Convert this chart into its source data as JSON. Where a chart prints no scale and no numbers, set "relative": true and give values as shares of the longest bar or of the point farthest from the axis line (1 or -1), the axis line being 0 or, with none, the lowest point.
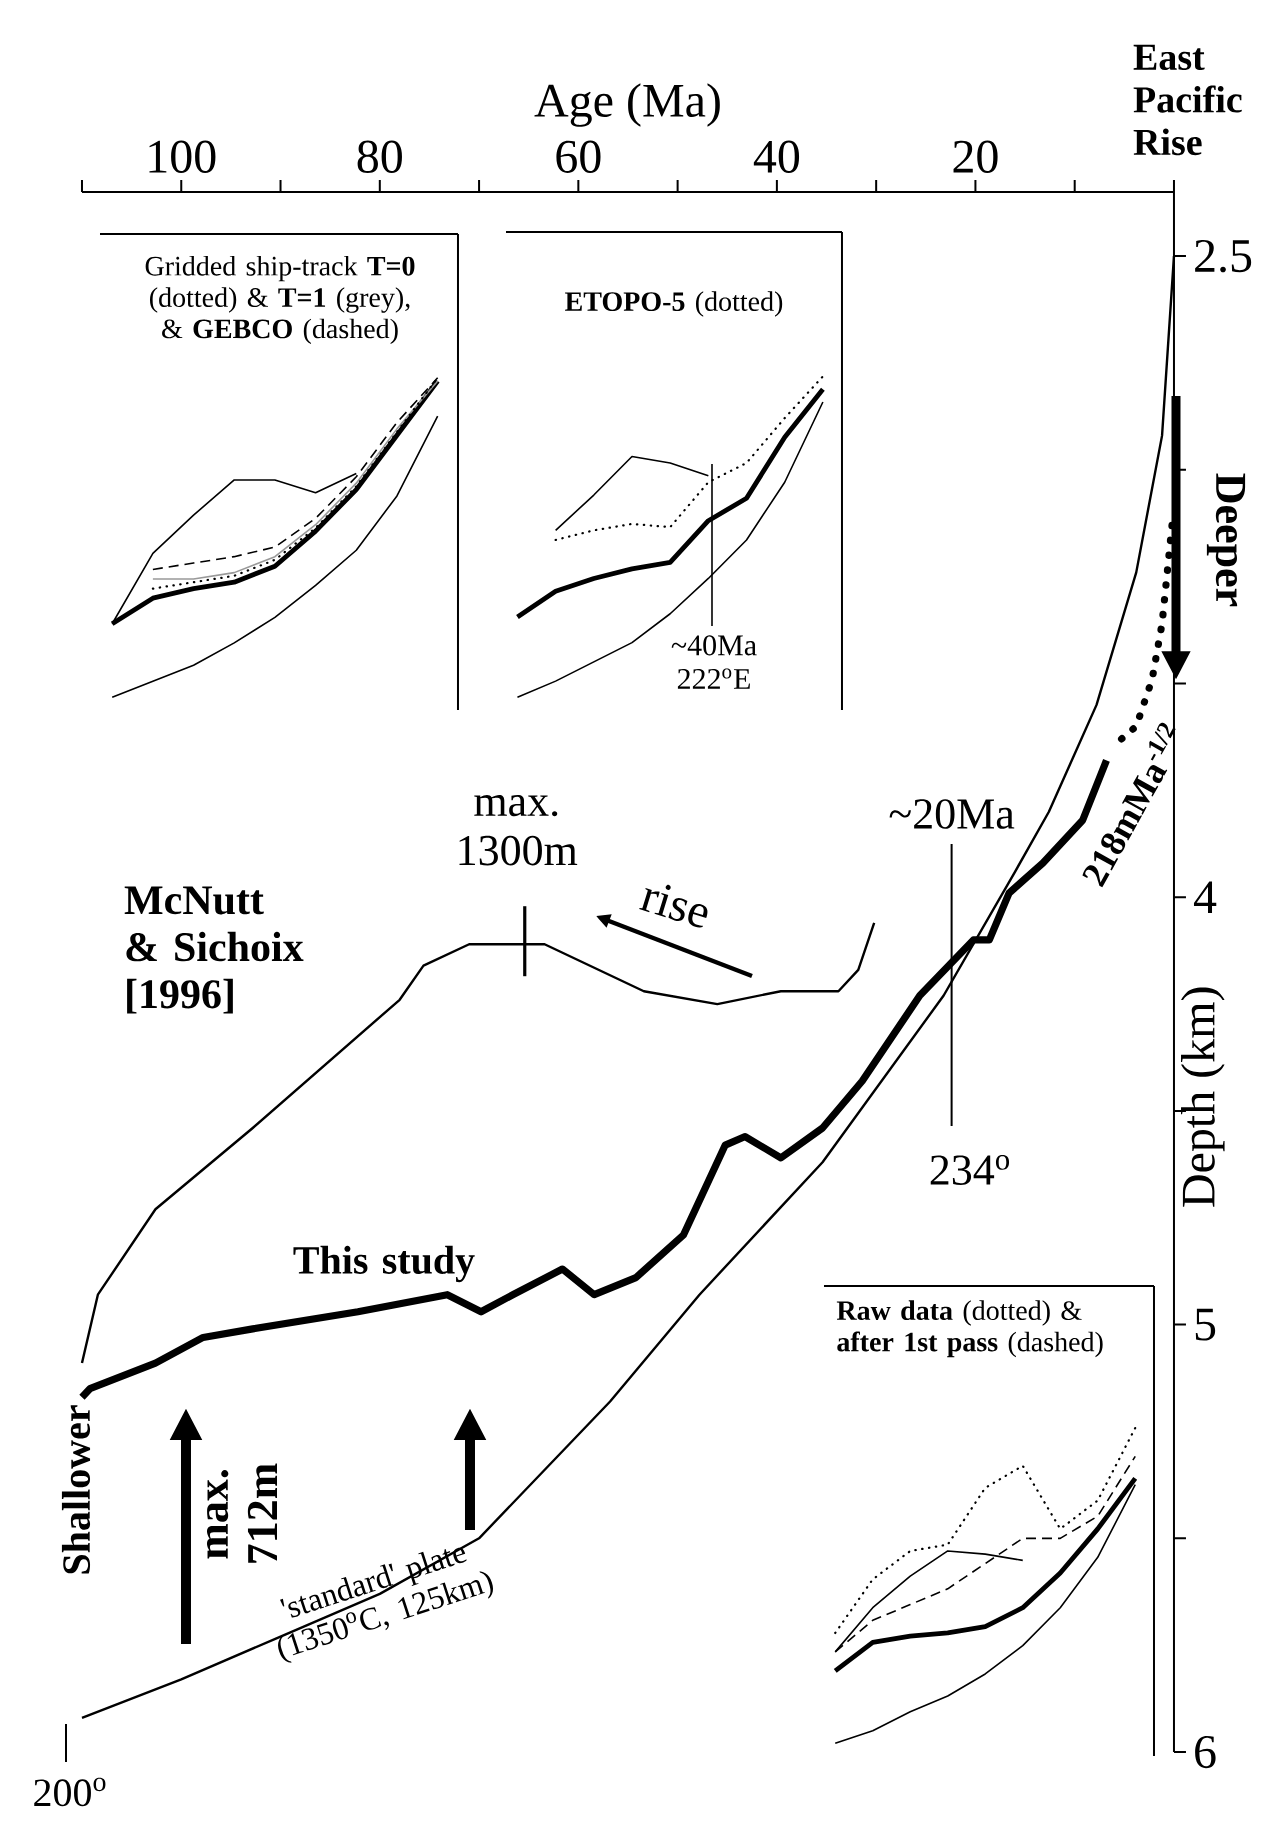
{
  "chart_data": [
    {
      "type": "line",
      "xlabel": "Age (Ma)",
      "ylabel": "Depth (km)",
      "xlim": [
        110,
        0
      ],
      "ylim": [
        6,
        2.35
      ],
      "xticks": [
        {
          "value": 110,
          "label": null
        },
        100,
        {
          "value": 90,
          "label": null
        },
        80,
        {
          "value": 70,
          "label": null
        },
        60,
        {
          "value": 50,
          "label": null
        },
        40,
        {
          "value": 30,
          "label": null
        },
        20,
        {
          "value": 10,
          "label": null
        },
        {
          "value": 0,
          "label": null
        }
      ],
      "yticks": [
        2.5,
        {
          "value": 3,
          "label": null
        },
        {
          "value": 3.5,
          "label": null
        },
        4,
        {
          "value": 4.5,
          "label": null
        },
        5,
        {
          "value": 5.5,
          "label": null
        },
        6
      ],
      "series": [
        {
          "name": "'standard' plate (1350$^{o}$C, 125km)",
          "color": "#000000",
          "x": [
            0,
            1.2,
            3.8,
            7.8,
            12.6,
            16,
            23.2,
            35.4,
            47.8,
            56.8,
            70,
            80,
            90,
            100,
            110
          ],
          "values": [
            2.5,
            2.92,
            3.24,
            3.55,
            3.8,
            3.94,
            4.23,
            4.62,
            4.93,
            5.18,
            5.5,
            5.63,
            5.73,
            5.83,
            5.92
          ]
        },
        {
          "name": "This study",
          "color": "#000000",
          "x": [
            6.8,
            9.2,
            13.2,
            16.6,
            18.6,
            20.2,
            25.6,
            31.4,
            35.4,
            39.6,
            43.2,
            45.2,
            49.4,
            54.2,
            58.4,
            61.6,
            66.6,
            69.8,
            73.2,
            82.2,
            92.8,
            97.8,
            102.6,
            109.2,
            110
          ],
          "values": [
            3.68,
            3.82,
            3.92,
            3.99,
            4.1,
            4.1,
            4.23,
            4.43,
            4.54,
            4.61,
            4.56,
            4.58,
            4.79,
            4.89,
            4.93,
            4.87,
            4.93,
            4.97,
            4.93,
            4.97,
            5.01,
            5.03,
            5.09,
            5.15,
            5.17
          ]
        },
        {
          "name": "McNutt & Sichoix [1996]",
          "color": "#000000",
          "x": [
            30.2,
            31.8,
            33.8,
            39.6,
            46,
            53.4,
            63.4,
            71,
            75.6,
            78,
            92.8,
            102.6,
            108.4,
            110
          ],
          "values": [
            4.06,
            4.17,
            4.22,
            4.22,
            4.25,
            4.22,
            4.11,
            4.11,
            4.16,
            4.24,
            4.54,
            4.73,
            4.93,
            5.09
          ]
        },
        {
          "name": "218mMa$^{-1/2}$",
          "color": "#000000",
          "line_style": "dotted",
          "x": [
            0.2,
            1.2,
            2.2,
            3.8,
            5.8
          ],
          "values": [
            3.13,
            3.36,
            3.49,
            3.6,
            3.64
          ]
        }
      ],
      "ref_lines": [
        {
          "axis": "x",
          "value": 22.4,
          "label": "~20Ma"
        }
      ],
      "annotations": [
        "East Pacific Rise",
        "Deeper",
        "rise",
        {
          "text": "max. 1300m",
          "x": 65.4,
          "y": 4.11
        },
        "234$^{o}$",
        "Shallower",
        "max. 712m",
        "200$^{o}$"
      ]
    },
    {
      "type": "line",
      "relative": true,
      "title": "Gridded ship-track **T=0** (dotted) & **T=1** (grey), & **GEBCO** (dashed)",
      "categories": [
        null,
        null,
        null,
        null,
        null,
        null,
        null,
        null,
        null
      ],
      "series": [
        {
          "color": "#000000",
          "values": [
            0,
            0.05,
            0.1,
            0.17,
            0.25,
            0.35,
            0.46,
            0.63,
            0.88
          ]
        },
        {
          "color": "#000000",
          "values": [
            0.23,
            0.31,
            0.34,
            0.36,
            0.41,
            0.52,
            0.65,
            0.82,
            0.99
          ]
        },
        {
          "color": "#000000",
          "values": [
            0.23,
            0.45,
            0.57,
            0.68,
            0.68,
            0.64,
            0.7,
            null,
            null
          ]
        },
        {
          "color": "#000000",
          "line_style": "dashed",
          "values": [
            null,
            0.4,
            0.42,
            0.44,
            0.47,
            0.56,
            0.69,
            0.86,
            1.0
          ]
        },
        {
          "color": "#999999",
          "values": [
            null,
            0.37,
            0.37,
            0.39,
            0.44,
            0.54,
            0.67,
            0.84,
            0.99
          ]
        },
        {
          "color": "#000000",
          "line_style": "dotted",
          "values": [
            null,
            0.34,
            0.36,
            0.38,
            0.43,
            0.53,
            0.66,
            0.83,
            1.0
          ]
        }
      ]
    },
    {
      "type": "line",
      "relative": true,
      "title": "**ETOPO-5** (dotted)",
      "categories": [
        null,
        null,
        null,
        null,
        null,
        null,
        null,
        null,
        null
      ],
      "series": [
        {
          "color": "#000000",
          "values": [
            0,
            0.05,
            0.11,
            0.17,
            0.26,
            0.37,
            0.49,
            0.67,
            0.92
          ]
        },
        {
          "color": "#000000",
          "values": [
            0.25,
            0.33,
            0.37,
            0.4,
            0.42,
            0.55,
            0.62,
            0.81,
            0.96
          ]
        },
        {
          "color": "#000000",
          "values": [
            null,
            0.52,
            0.63,
            0.75,
            0.73,
            0.69,
            null,
            null,
            null
          ]
        },
        {
          "color": "#000000",
          "line_style": "dotted",
          "values": [
            null,
            0.49,
            0.52,
            0.54,
            0.53,
            0.67,
            0.73,
            0.87,
            1.0
          ]
        }
      ],
      "annotations": [
        "~40Ma 222$^{o}$E"
      ]
    },
    {
      "type": "line",
      "relative": true,
      "title": "**Raw data** (dotted) & **after 1st pass** (dashed)",
      "categories": [
        null,
        null,
        null,
        null,
        null,
        null,
        null,
        null,
        null
      ],
      "series": [
        {
          "color": "#000000",
          "values": [
            0,
            0.04,
            0.1,
            0.15,
            0.22,
            0.31,
            0.43,
            0.59,
            0.82
          ]
        },
        {
          "color": "#000000",
          "values": [
            0.23,
            0.32,
            0.34,
            0.35,
            0.37,
            0.43,
            0.54,
            0.68,
            0.84
          ]
        },
        {
          "color": "#000000",
          "values": [
            0.29,
            0.43,
            0.53,
            0.61,
            0.6,
            0.58,
            null,
            null,
            null
          ]
        },
        {
          "color": "#000000",
          "line_style": "dotted",
          "values": [
            0.35,
            0.52,
            0.61,
            0.63,
            0.81,
            0.88,
            0.68,
            0.77,
            1.0
          ]
        },
        {
          "color": "#000000",
          "line_style": "dashed",
          "values": [
            0.29,
            0.39,
            0.44,
            0.49,
            0.57,
            0.65,
            0.65,
            0.72,
            0.91
          ]
        }
      ]
    }
  ]
}
